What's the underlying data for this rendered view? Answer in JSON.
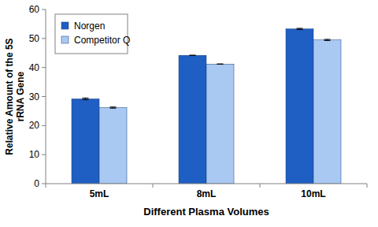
{
  "chart_data": {
    "type": "bar",
    "y_label": "Relative Amount of the 5S rRNA Gene",
    "x_label": "Different Plasma Volumes",
    "categories": [
      "5mL",
      "8mL",
      "10mL"
    ],
    "series": [
      {
        "name": "Norgen",
        "color": "#1f5fc4",
        "values": [
          29.2,
          44.2,
          53.3
        ],
        "errors": [
          0.3,
          0,
          0.2
        ]
      },
      {
        "name": "Competitor Q",
        "color": "#a9c9f2",
        "values": [
          26.2,
          41.2,
          49.5
        ],
        "errors": [
          0.2,
          0,
          0.2
        ]
      }
    ],
    "ylim": [
      0,
      60
    ],
    "yticks": [
      0,
      10,
      20,
      30,
      40,
      50,
      60
    ],
    "grid": false,
    "legend": "top-left"
  }
}
